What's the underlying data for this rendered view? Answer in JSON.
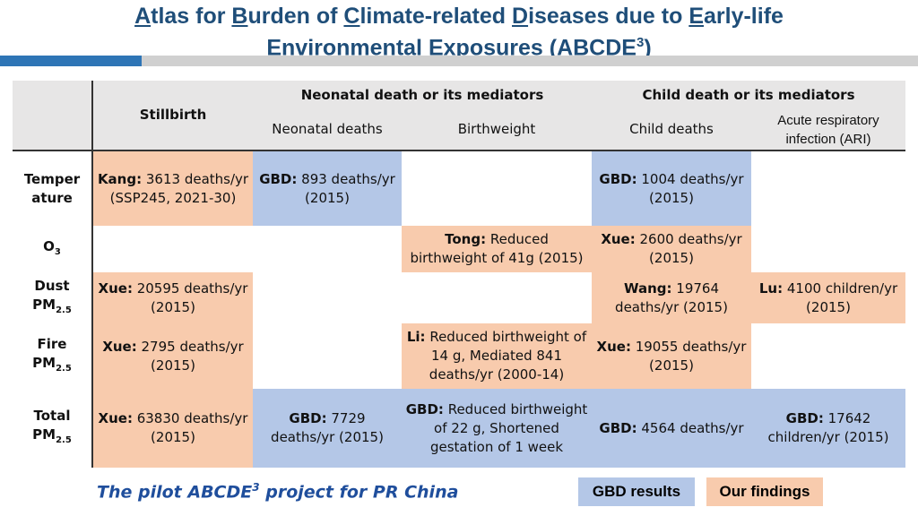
{
  "title": {
    "w1_initial": "A",
    "w1_rest": "tlas for ",
    "w2_initial": "B",
    "w2_rest": "urden of ",
    "w3_initial": "C",
    "w3_rest": "limate-related ",
    "w4_initial": "D",
    "w4_rest": "iseases due to ",
    "w5_initial": "E",
    "w5_rest": "arly-life",
    "w6_initial": "E",
    "w6_rest": "nvironmental ",
    "w7_initial": "E",
    "w7_rest": "xposures (ABCDE",
    "sup": "3",
    "close": ")"
  },
  "colors": {
    "title": "#1f4e79",
    "gbd": "#b4c7e7",
    "ours": "#f8cbad",
    "header": "#e7e6e6",
    "accent_bar": "#2e75b6"
  },
  "table": {
    "headers": {
      "stillbirth": "Stillbirth",
      "neonatal_group": "Neonatal death or its mediators",
      "child_group": "Child death or its mediators",
      "neonatal_deaths": "Neonatal deaths",
      "birthweight": "Birthweight",
      "child_deaths": "Child deaths",
      "ari": "Acute respiratory infection (ARI)"
    },
    "rows": {
      "temperature": "Temper ature",
      "o3": "O",
      "o3_sub": "3",
      "dust": "Dust PM",
      "fire": "Fire PM",
      "total": "Total PM",
      "pm_sub": "2.5"
    },
    "cells": {
      "temp_still_author": "Kang:",
      "temp_still_text": " 3613 deaths/yr (SSP245, 2021-30)",
      "temp_neo_author": "GBD:",
      "temp_neo_text": " 893 deaths/yr (2015)",
      "temp_child_author": "GBD:",
      "temp_child_text": " 1004 deaths/yr (2015)",
      "o3_bw_author": "Tong:",
      "o3_bw_text": " Reduced birthweight of 41g (2015)",
      "o3_child_author": "Xue:",
      "o3_child_text": " 2600 deaths/yr (2015)",
      "dust_still_author": "Xue:",
      "dust_still_text": " 20595 deaths/yr (2015)",
      "dust_child_author": "Wang:",
      "dust_child_text": " 19764 deaths/yr (2015)",
      "dust_ari_author": "Lu:",
      "dust_ari_text": " 4100 children/yr (2015)",
      "fire_still_author": "Xue:",
      "fire_still_text": " 2795 deaths/yr (2015)",
      "fire_bw_author": "Li:",
      "fire_bw_text": " Reduced birthweight of 14 g, Mediated 841 deaths/yr (2000-14)",
      "fire_child_author": "Xue:",
      "fire_child_text": " 19055 deaths/yr (2015)",
      "total_still_author": "Xue:",
      "total_still_text": " 63830 deaths/yr (2015)",
      "total_neo_author": "GBD:",
      "total_neo_text": " 7729 deaths/yr (2015)",
      "total_bw_author": "GBD:",
      "total_bw_text": " Reduced birthweight of 22 g, Shortened gestation of 1 week",
      "total_child_author": "GBD:",
      "total_child_text": " 4564 deaths/yr",
      "total_ari_author": "GBD:",
      "total_ari_text": " 17642 children/yr (2015)"
    }
  },
  "footer": {
    "tagline": "The pilot ABCDE",
    "tagline_sup": "3",
    "tagline_rest": " project for PR China",
    "legend_gbd": "GBD results",
    "legend_ours": "Our findings"
  }
}
